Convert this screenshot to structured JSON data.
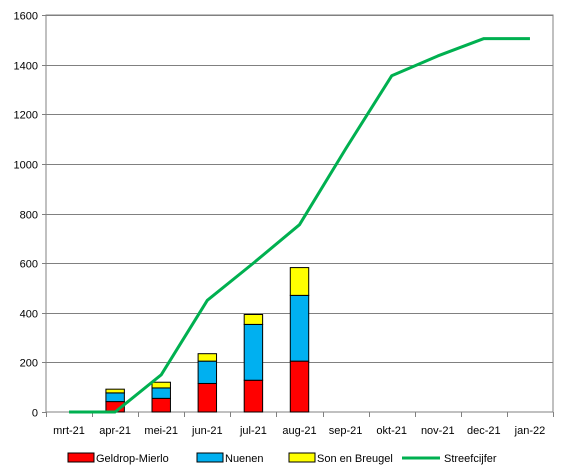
{
  "chart_data": {
    "type": "bar",
    "stacked": true,
    "categories": [
      "mrt-21",
      "apr-21",
      "mei-21",
      "jun-21",
      "jul-21",
      "aug-21",
      "sep-21",
      "okt-21",
      "nov-21",
      "dec-21",
      "jan-22"
    ],
    "series": [
      {
        "name": "Geldrop-Mierlo",
        "kind": "bar",
        "color": "#ff0000",
        "values": [
          null,
          42,
          55,
          115,
          128,
          205,
          null,
          null,
          null,
          null,
          null
        ]
      },
      {
        "name": "Nuenen",
        "kind": "bar",
        "color": "#00b0f0",
        "values": [
          null,
          35,
          42,
          90,
          225,
          265,
          null,
          null,
          null,
          null,
          null
        ]
      },
      {
        "name": "Son en Breugel",
        "kind": "bar",
        "color": "#ffff00",
        "values": [
          null,
          15,
          23,
          30,
          40,
          112,
          null,
          null,
          null,
          null,
          null
        ]
      },
      {
        "name": "Streefcijfer",
        "kind": "line",
        "color": "#00b050",
        "values": [
          0,
          0,
          150,
          450,
          600,
          755,
          1060,
          1355,
          1435,
          1505,
          1505
        ]
      }
    ],
    "yticks": [
      "0",
      "200",
      "400",
      "600",
      "800",
      "1000",
      "1200",
      "1400",
      "1600"
    ],
    "ylim": [
      0,
      1600
    ],
    "grid": true,
    "legend_position": "bottom",
    "title": "",
    "xlabel": "",
    "ylabel": ""
  }
}
